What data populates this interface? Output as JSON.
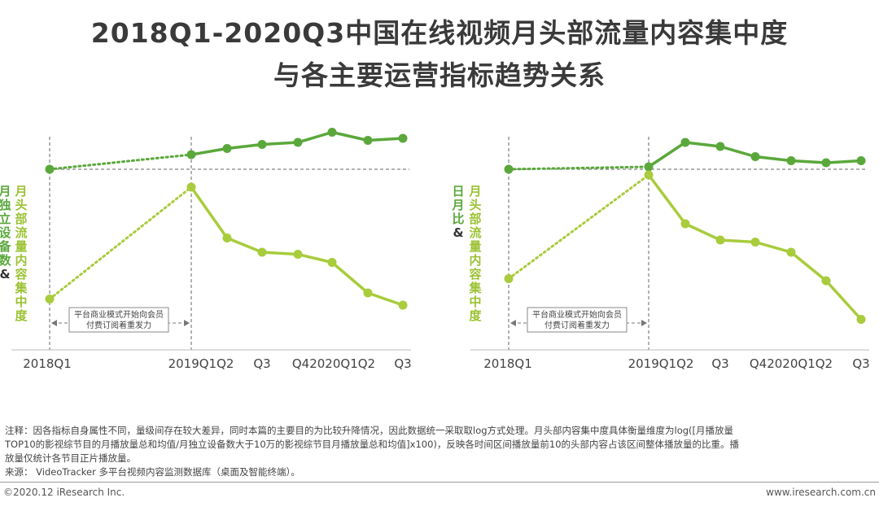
{
  "title_line1": "2018Q1-2020Q3中国在线视频月头部流量内容集中度",
  "title_line2": "与各主要运营指标趋势关系",
  "colors": {
    "light": "#a8cc3c",
    "dark": "#5aa83b",
    "text": "#9bc232"
  },
  "chart_data": [
    {
      "type": "line",
      "x": [
        "2018Q1",
        "2019Q1",
        "Q2",
        "Q3",
        "Q4",
        "2020Q1",
        "Q2",
        "Q3"
      ],
      "x_tick_labels": [
        "2018Q1",
        "2019Q1Q2",
        "Q3",
        "Q42020Q1Q2",
        "Q3"
      ],
      "ylabel_green": "月头部流量内容集中度",
      "ylabel_dark": "月独立设备数&",
      "annotation": [
        "平台商业模式开始向会员",
        "付费订阅着重发力"
      ],
      "series": [
        {
          "name": "月独立设备数",
          "color": "dark",
          "values": [
            0.94,
            0.96,
            0.99,
            1.01,
            1.02,
            1.07,
            1.03,
            1.04
          ]
        },
        {
          "name": "月头部流量内容集中度",
          "color": "light",
          "values": [
            0.25,
            0.8,
            0.55,
            0.48,
            0.47,
            0.43,
            0.28,
            0.22
          ]
        }
      ]
    },
    {
      "type": "line",
      "x": [
        "2018Q1",
        "2019Q1",
        "Q2",
        "Q3",
        "Q4",
        "2020Q1",
        "Q2",
        "Q3"
      ],
      "x_tick_labels": [
        "2018Q1",
        "2019Q1Q2",
        "Q3",
        "Q42020Q1Q2",
        "Q3"
      ],
      "ylabel_green": "月头部流量内容集中度",
      "ylabel_dark": "日月比&",
      "annotation": [
        "平台商业模式开始向会员",
        "付费订阅着重发力"
      ],
      "series": [
        {
          "name": "日月比",
          "color": "dark",
          "values": [
            0.94,
            0.9,
            1.02,
            1.0,
            0.95,
            0.93,
            0.92,
            0.93
          ]
        },
        {
          "name": "月头部流量内容集中度",
          "color": "light",
          "values": [
            0.35,
            0.86,
            0.62,
            0.54,
            0.53,
            0.48,
            0.34,
            0.15
          ]
        }
      ]
    }
  ],
  "note_lines": [
    "注释：因各指标自身属性不同，量级间存在较大差异，同时本篇的主要目的为比较升降情况，因此数据统一采取取log方式处理。月头部内容集中度具体衡量维度为log([月播放量",
    "TOP10的影视综节目的月播放量总和均值/月独立设备数大于10万的影视综节目月播放量总和均值]x100)，反映各时间区间播放量前10的头部内容占该区间整体播放量的比重。播",
    "放量仅统计各节目正片播放量。",
    "来源：  VideoTracker 多平台视频内容监测数据库（桌面及智能终端）。"
  ],
  "footer_left": "©2020.12 iResearch Inc.",
  "footer_right": "www.iresearch.com.cn"
}
